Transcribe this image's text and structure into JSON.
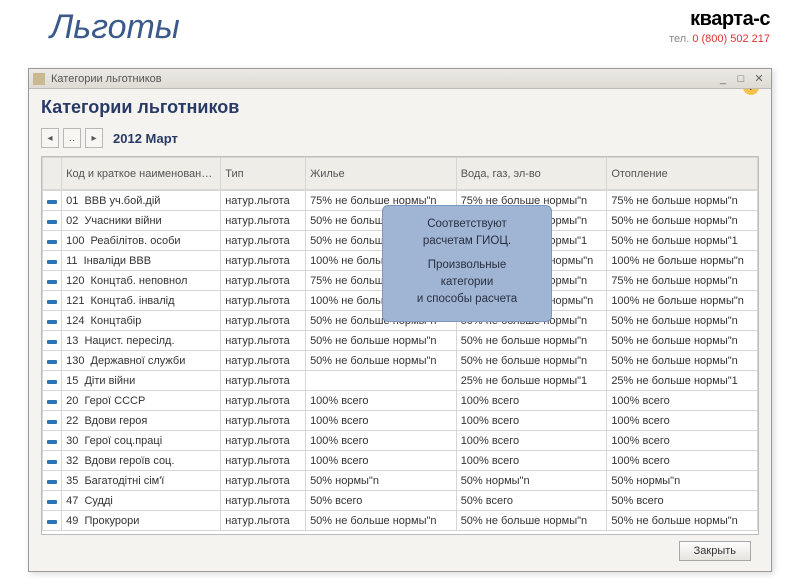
{
  "header": {
    "page_title": "Льготы",
    "brand": "кварта-с",
    "phone_prefix": "тел. ",
    "phone": "0 (800) 502 217"
  },
  "window": {
    "title": "Категории льготников",
    "body_title": "Категории льготников",
    "period": "2012 Март",
    "close_label": "Закрыть"
  },
  "columns": {
    "code": "Код и краткое наименование категории",
    "type": "Тип",
    "housing": "Жилье",
    "water": "Вода, газ, эл-во",
    "heat": "Отопление"
  },
  "rows": [
    {
      "code": "01",
      "name": "ВВВ уч.бой.дій",
      "type": "натур.льгота",
      "h": "75% не больше нормы\"n",
      "w": "75% не больше нормы\"n",
      "heat": "75% не больше нормы\"n"
    },
    {
      "code": "02",
      "name": "Учасники війни",
      "type": "натур.льгота",
      "h": "50% не больше нормы\"n",
      "w": "50% не больше нормы\"n",
      "heat": "50% не больше нормы\"n"
    },
    {
      "code": "100",
      "name": "Реабілітов. особи",
      "type": "натур.льгота",
      "h": "50% не больше нормы\"1",
      "w": "50% не больше нормы\"1",
      "heat": "50% не больше нормы\"1"
    },
    {
      "code": "11",
      "name": "Інваліди ВВВ",
      "type": "натур.льгота",
      "h": "100% не больше нормы\"n",
      "w": "100% не больше нормы\"n",
      "heat": "100% не больше нормы\"n"
    },
    {
      "code": "120",
      "name": "Концтаб. неповнол",
      "type": "натур.льгота",
      "h": "75% не больше нормы\"n",
      "w": "75% не больше нормы\"n",
      "heat": "75% не больше нормы\"n"
    },
    {
      "code": "121",
      "name": "Концтаб. інвалід",
      "type": "натур.льгота",
      "h": "100% не больше нормы\"n",
      "w": "100% не больше нормы\"n",
      "heat": "100% не больше нормы\"n"
    },
    {
      "code": "124",
      "name": "Концтабір",
      "type": "натур.льгота",
      "h": "50% не больше нормы\"n",
      "w": "50% не больше нормы\"n",
      "heat": "50% не больше нормы\"n"
    },
    {
      "code": "13",
      "name": "Нацист. пересілд.",
      "type": "натур.льгота",
      "h": "50% не больше нормы\"n",
      "w": "50% не больше нормы\"n",
      "heat": "50% не больше нормы\"n"
    },
    {
      "code": "130",
      "name": "Державної служби",
      "type": "натур.льгота",
      "h": "50% не больше нормы\"n",
      "w": "50% не больше нормы\"n",
      "heat": "50% не больше нормы\"n"
    },
    {
      "code": "15",
      "name": "Діти війни",
      "type": "натур.льгота",
      "h": "",
      "w": "25% не больше нормы\"1",
      "heat": "25% не больше нормы\"1"
    },
    {
      "code": "20",
      "name": "Герої СССР",
      "type": "натур.льгота",
      "h": "100% всего",
      "w": "100% всего",
      "heat": "100% всего"
    },
    {
      "code": "22",
      "name": "Вдови героя",
      "type": "натур.льгота",
      "h": "100% всего",
      "w": "100% всего",
      "heat": "100% всего"
    },
    {
      "code": "30",
      "name": "Герої соц.праці",
      "type": "натур.льгота",
      "h": "100% всего",
      "w": "100% всего",
      "heat": "100% всего"
    },
    {
      "code": "32",
      "name": "Вдови героїв соц.",
      "type": "натур.льгота",
      "h": "100% всего",
      "w": "100% всего",
      "heat": "100% всего"
    },
    {
      "code": "35",
      "name": "Багатодітні сім'ї",
      "type": "натур.льгота",
      "h": "50% нормы\"n",
      "w": "50% нормы\"n",
      "heat": "50% нормы\"n"
    },
    {
      "code": "47",
      "name": "Судді",
      "type": "натур.льгота",
      "h": "50% всего",
      "w": "50% всего",
      "heat": "50% всего"
    },
    {
      "code": "49",
      "name": "Прокурори",
      "type": "натур.льгота",
      "h": "50% не больше нормы\"n",
      "w": "50% не больше нормы\"n",
      "heat": "50% не больше нормы\"n"
    }
  ],
  "callout": {
    "line1": "Соответствуют",
    "line2": "расчетам ГИОЦ.",
    "line3": "Произвольные",
    "line4": "категории",
    "line5": "и способы расчета"
  },
  "colors": {
    "page_title": "#3b5a8a",
    "brand_phone": "#d33",
    "window_bg": "#f4f3f0",
    "callout_bg": "#9fb5d3",
    "row_mark": "#2b74b5"
  }
}
